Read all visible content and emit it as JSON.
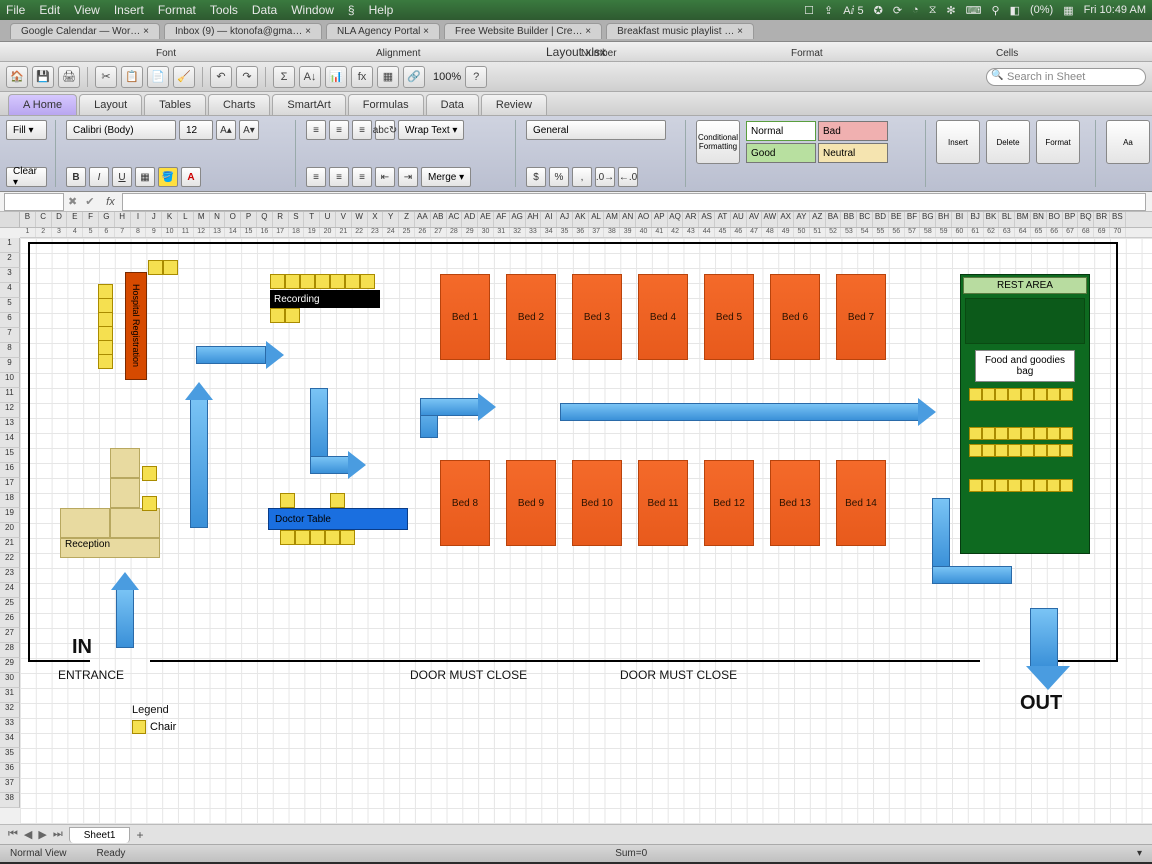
{
  "mac_menu": {
    "items": [
      "File",
      "Edit",
      "View",
      "Insert",
      "Format",
      "Tools",
      "Data",
      "Window",
      "§",
      "Help"
    ],
    "right": [
      "☐",
      "⇪",
      "Aⅈ 5",
      "✪",
      "⟳",
      "◔",
      "⧖",
      "✻",
      "⌨",
      "⚲",
      "◧",
      "(0%)",
      "▦",
      "Fri 10:49 AM"
    ]
  },
  "browser_tabs": [
    "Google Calendar — Wor…  ×",
    "Inbox (9) — ktonofa@gma…  ×",
    "NLA Agency Portal  ×",
    "Free Website Builder | Cre…  ×",
    "Breakfast music playlist …  ×"
  ],
  "window_title": "Layout.xlsx",
  "toolbar": {
    "zoom": "100%",
    "search_placeholder": "Search in Sheet",
    "icons": [
      "🏠",
      "💾",
      "🖨",
      "✂",
      "📋",
      "📄",
      "🧹",
      "↶",
      "↷",
      "Σ",
      "A↓",
      "📊",
      "fx",
      "▦",
      "🔗"
    ]
  },
  "ribbon_tabs": [
    "A Home",
    "Layout",
    "Tables",
    "Charts",
    "SmartArt",
    "Formulas",
    "Data",
    "Review"
  ],
  "ribbon_active": 0,
  "ribbon_sections": [
    "Font",
    "Alignment",
    "Number",
    "Format",
    "Cells"
  ],
  "font": {
    "name": "Calibri (Body)",
    "size": "12"
  },
  "side_labels": {
    "fill": "Fill ▾",
    "clear": "Clear ▾"
  },
  "number_format": "General",
  "styles": {
    "normal": "Normal",
    "bad": "Bad",
    "good": "Good",
    "neutral": "Neutral"
  },
  "cells_btns": [
    "Insert",
    "Delete",
    "Format"
  ],
  "cond_fmt": "Conditional\nFormatting",
  "merge_label": "Merge ▾",
  "wrap_label": "Wrap Text ▾",
  "columns": [
    "B",
    "C",
    "D",
    "E",
    "F",
    "G",
    "H",
    "I",
    "J",
    "K",
    "L",
    "M",
    "N",
    "O",
    "P",
    "Q",
    "R",
    "S",
    "T",
    "U",
    "V",
    "W",
    "X",
    "Y",
    "Z",
    "AA",
    "AB",
    "AC",
    "AD",
    "AE",
    "AF",
    "AG",
    "AH",
    "AI",
    "AJ",
    "AK",
    "AL",
    "AM",
    "AN",
    "AO",
    "AP",
    "AQ",
    "AR",
    "AS",
    "AT",
    "AU",
    "AV",
    "AW",
    "AX",
    "AY",
    "AZ",
    "BA",
    "BB",
    "BC",
    "BD",
    "BE",
    "BF",
    "BG",
    "BH",
    "BI",
    "BJ",
    "BK",
    "BL",
    "BM",
    "BN",
    "BO",
    "BP",
    "BQ",
    "BR",
    "BS"
  ],
  "col_nums": [
    "1",
    "2",
    "3",
    "4",
    "5",
    "6",
    "7",
    "8",
    "9",
    "10",
    "11",
    "12",
    "13",
    "14",
    "15",
    "16",
    "17",
    "18",
    "19",
    "20",
    "21",
    "22",
    "23",
    "24",
    "25",
    "26",
    "27",
    "28",
    "29",
    "30",
    "31",
    "32",
    "33",
    "34",
    "35",
    "36",
    "37",
    "38",
    "39",
    "40",
    "41",
    "42",
    "43",
    "44",
    "45",
    "46",
    "47",
    "48",
    "49",
    "50",
    "51",
    "52",
    "53",
    "54",
    "55",
    "56",
    "57",
    "58",
    "59",
    "60",
    "61",
    "62",
    "63",
    "64",
    "65",
    "66",
    "67",
    "68",
    "69",
    "70"
  ],
  "rows": 38,
  "floor": {
    "hreg": "Hospital Registration",
    "recording": "Recording",
    "reception": "Reception",
    "doctor": "Doctor Table",
    "rest_title": "REST AREA",
    "rest_food": "Food and goodies bag",
    "beds_top": [
      "Bed 1",
      "Bed 2",
      "Bed 3",
      "Bed 4",
      "Bed 5",
      "Bed 6",
      "Bed 7"
    ],
    "beds_bot": [
      "Bed 8",
      "Bed 9",
      "Bed 10",
      "Bed 11",
      "Bed 12",
      "Bed 13",
      "Bed 14"
    ],
    "in": "IN",
    "out": "OUT",
    "entrance": "ENTRANCE",
    "door": "DOOR MUST CLOSE",
    "legend": "Legend",
    "legend_chair": "Chair",
    "colors": {
      "bed": "#f05a1e",
      "chair": "#f5e050",
      "reg": "#d64a00",
      "doctor": "#1a6fe0",
      "rest": "#0e6a20",
      "arrow": "#4a9ce0",
      "reception": "#e8daa0"
    }
  },
  "sheet_tab": "Sheet1",
  "status": {
    "left": "Normal View",
    "ready": "Ready",
    "sum": "Sum=0"
  }
}
